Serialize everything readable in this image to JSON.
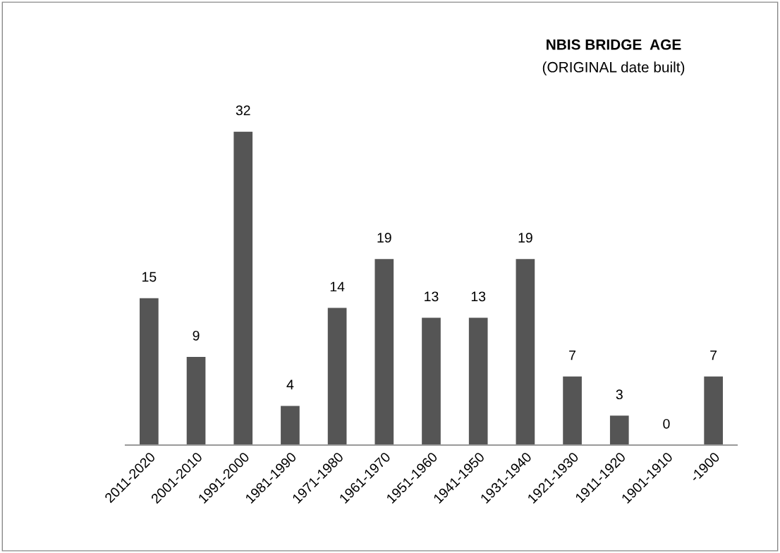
{
  "chart_data": {
    "type": "bar",
    "title": "NBIS BRIDGE  AGE",
    "subtitle": "(ORIGINAL date built)",
    "categories": [
      "2011-2020",
      "2001-2010",
      "1991-2000",
      "1981-1990",
      "1971-1980",
      "1961-1970",
      "1951-1960",
      "1941-1950",
      "1931-1940",
      "1921-1930",
      "1911-1920",
      "1901-1910",
      "-1900"
    ],
    "values": [
      15,
      9,
      32,
      4,
      14,
      19,
      13,
      13,
      19,
      7,
      3,
      0,
      7
    ],
    "color": "#555555",
    "data_labels": true,
    "tick_labels": "x",
    "grid": false,
    "legend": false
  }
}
